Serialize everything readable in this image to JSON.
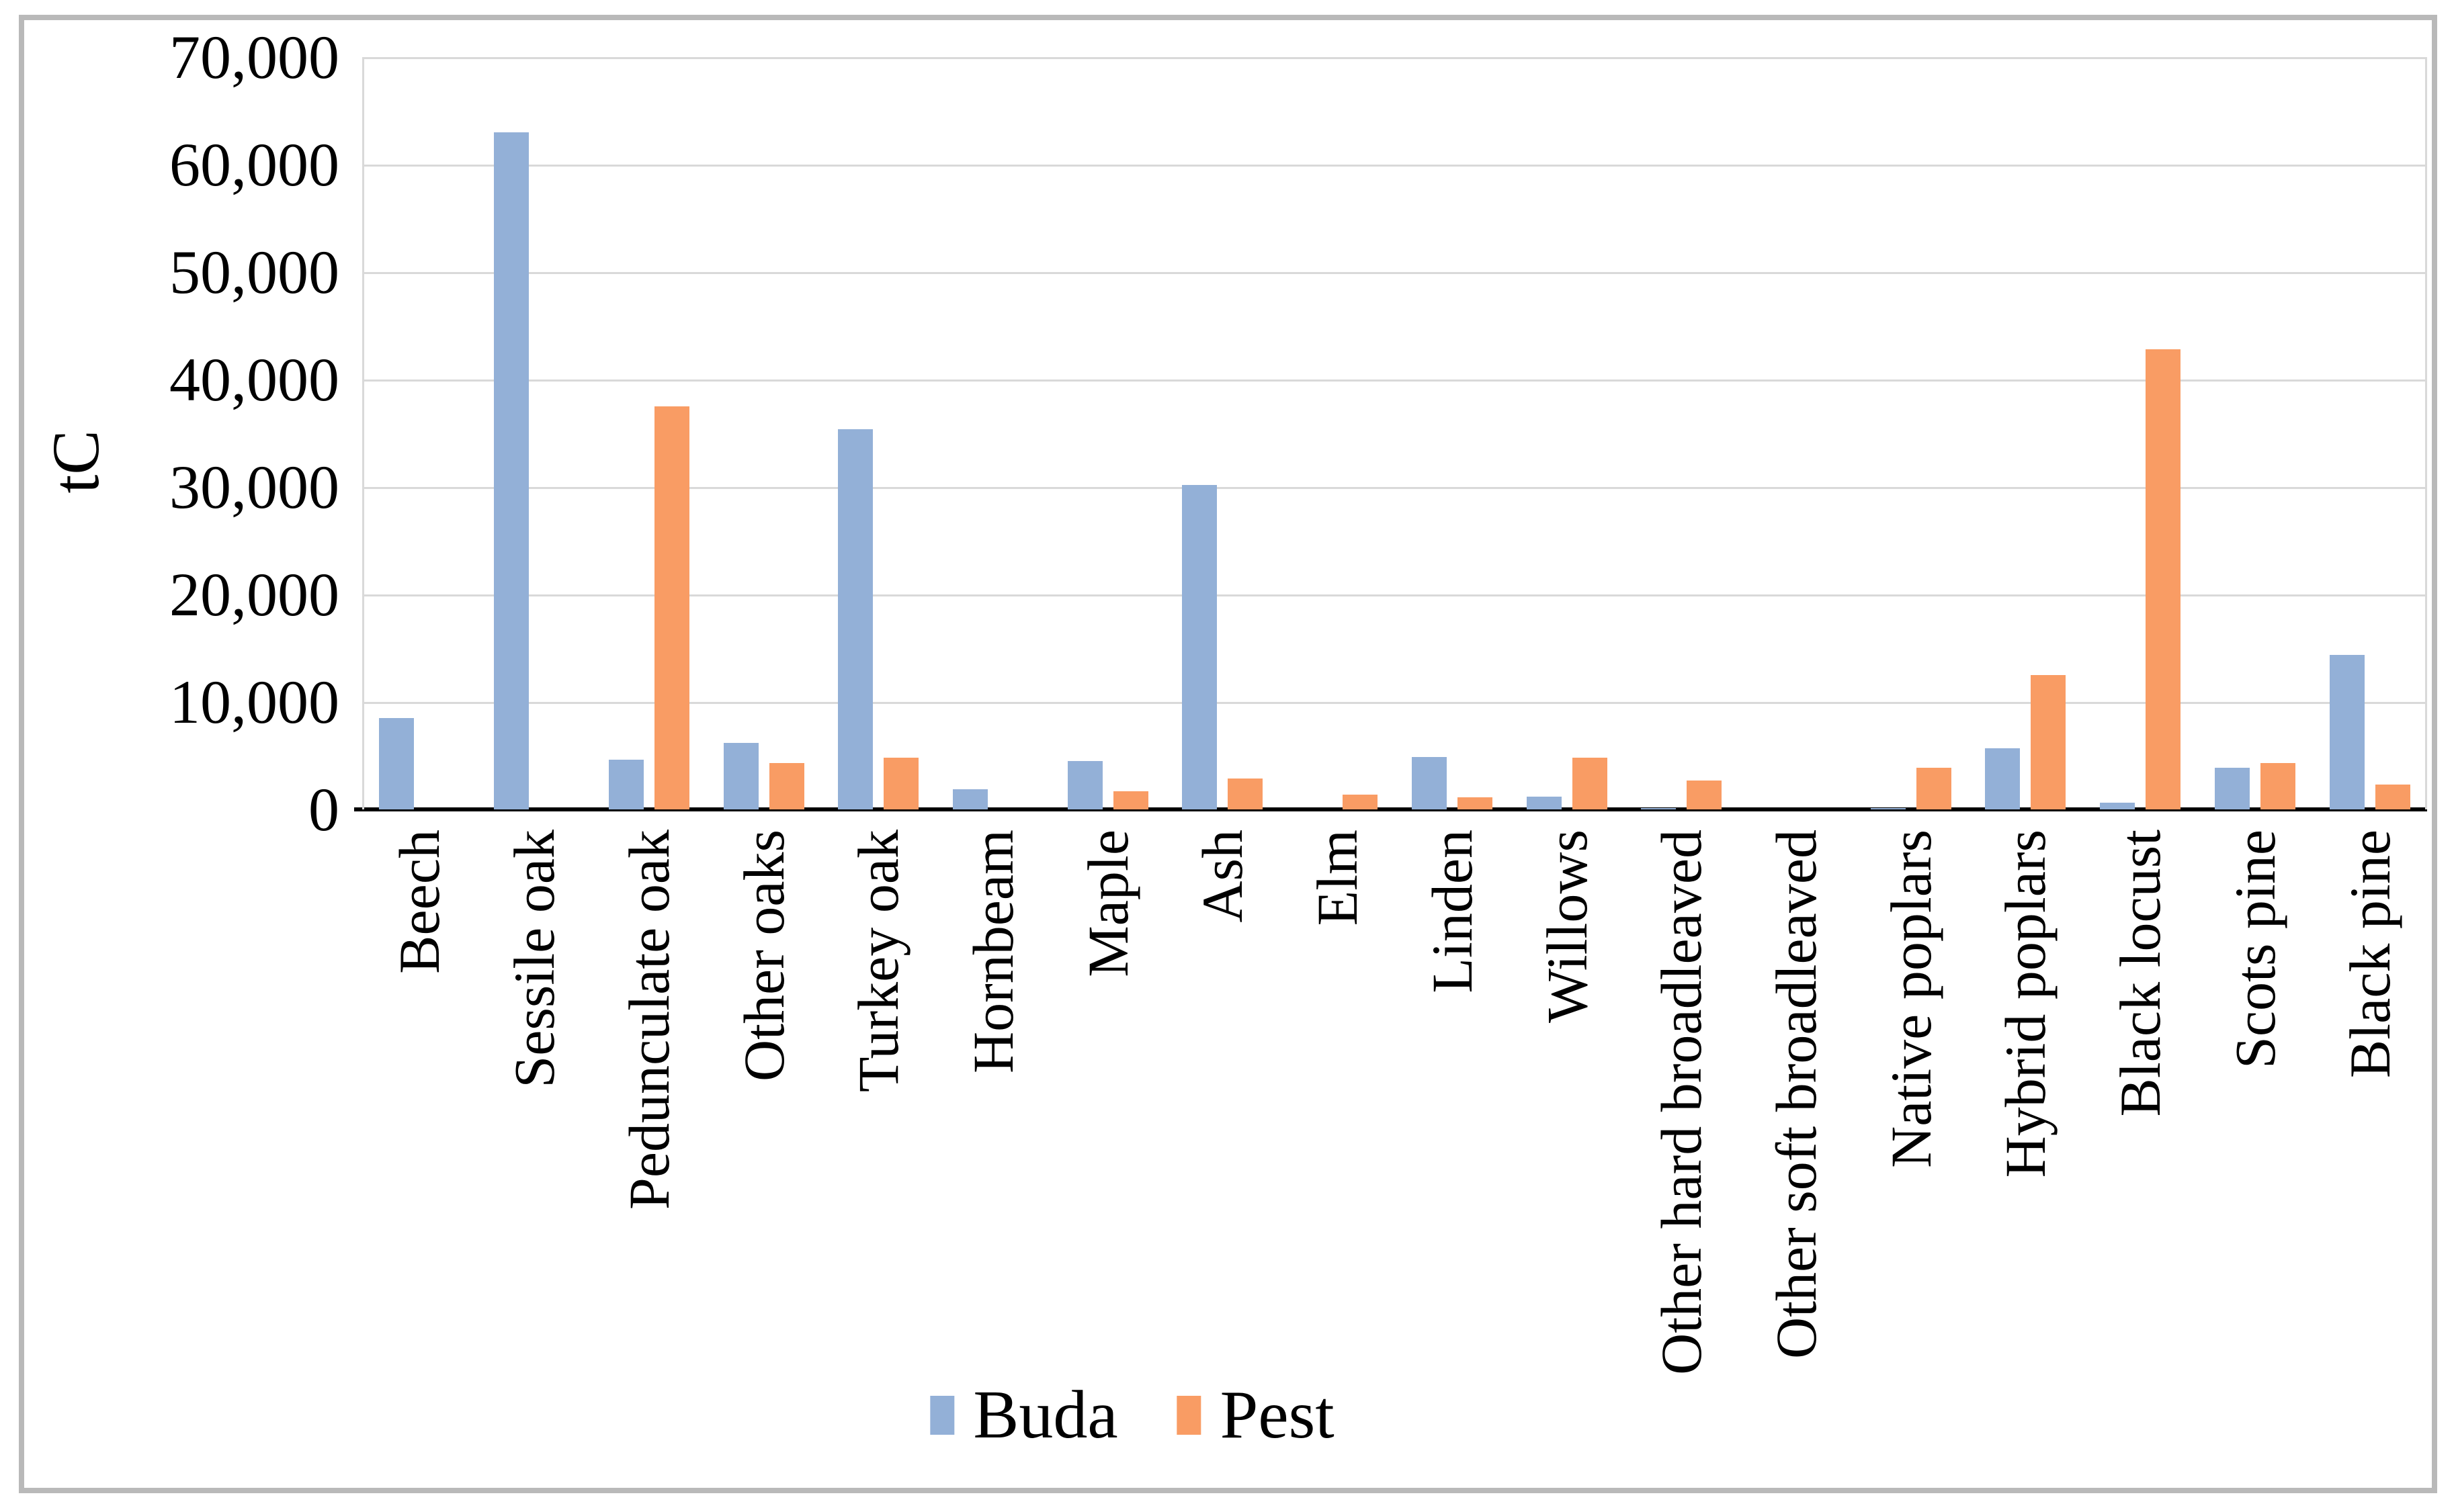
{
  "chart_data": {
    "type": "bar",
    "title": "",
    "ylabel": "tC",
    "xlabel": "",
    "categories": [
      "Beech",
      "Sessile oak",
      "Pedunculate oak",
      "Other oaks",
      "Turkey oak",
      "Hornbeam",
      "Maple",
      "Ash",
      "Elm",
      "Linden",
      "Willows",
      "Other hard broadleaved",
      "Other soft broadleaved",
      "Native poplars",
      "Hybrid poplars",
      "Black locust",
      "Scots pine",
      "Black pine"
    ],
    "series": [
      {
        "name": "Buda",
        "color": "#93b0d7",
        "values": [
          8500,
          63000,
          4600,
          6200,
          35400,
          1900,
          4500,
          30200,
          0,
          4900,
          1200,
          150,
          0,
          150,
          5700,
          600,
          3900,
          14400
        ]
      },
      {
        "name": "Pest",
        "color": "#f99c64",
        "values": [
          0,
          0,
          37500,
          4300,
          4800,
          0,
          1700,
          2900,
          1400,
          1100,
          4800,
          2700,
          0,
          3900,
          12500,
          42800,
          4300,
          2300
        ]
      }
    ],
    "ylim": [
      0,
      70000
    ],
    "ytick_interval": 10000,
    "ytick_labels": [
      "0",
      "10,000",
      "20,000",
      "30,000",
      "40,000",
      "50,000",
      "60,000",
      "70,000"
    ],
    "grid": "horizontal",
    "legend_position": "bottom-center",
    "bar_orientation": "vertical"
  },
  "colors": {
    "buda_blue": "#93b0d7",
    "pest_orange": "#f99c64",
    "gridline": "#d9d9d9",
    "axis": "#000000",
    "outer_border": "#b9b9b9",
    "background": "#ffffff"
  }
}
